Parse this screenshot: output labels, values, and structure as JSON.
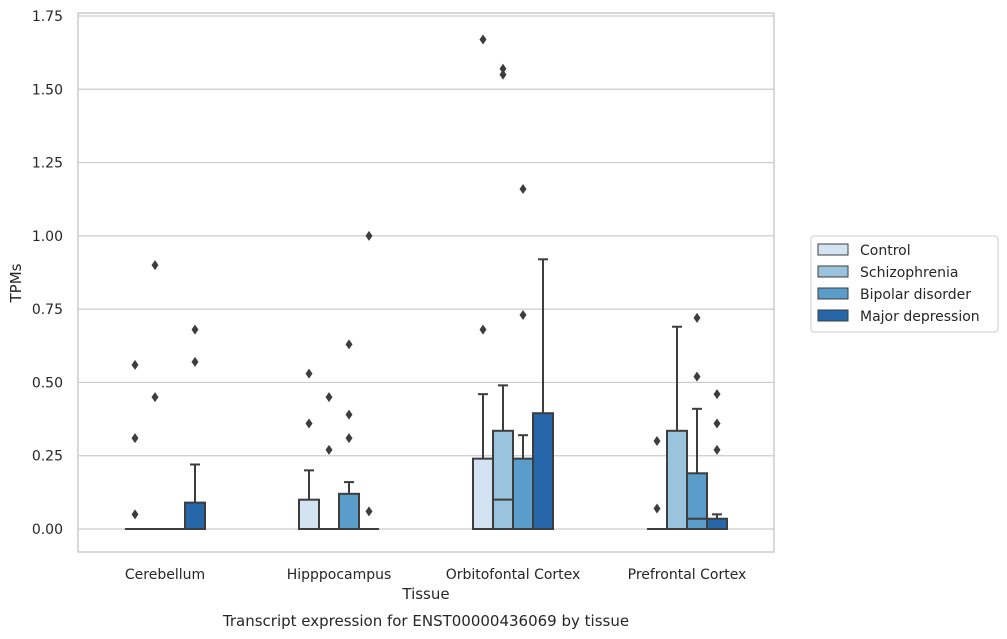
{
  "chart_data": {
    "type": "box",
    "title": "",
    "xlabel": "Tissue",
    "ylabel": "TPMs",
    "caption": "Transcript expression for ENST00000436069 by tissue",
    "categories": [
      "Cerebellum",
      "Hipppocampus",
      "Orbitofontal Cortex",
      "Prefrontal Cortex"
    ],
    "ylim": [
      -0.08,
      1.76
    ],
    "yticks": [
      0.0,
      0.25,
      0.5,
      0.75,
      1.0,
      1.25,
      1.5,
      1.75
    ],
    "ytick_labels": [
      "0.00",
      "0.25",
      "0.50",
      "0.75",
      "1.00",
      "1.25",
      "1.50",
      "1.75"
    ],
    "grid": true,
    "legend_position": "right",
    "series": [
      {
        "name": "Control",
        "color": "#d3e3f2",
        "boxes": [
          {
            "q1": 0,
            "median": 0,
            "q3": 0,
            "whislo": 0,
            "whishi": 0,
            "fliers": [
              0.56,
              0.31,
              0.05
            ]
          },
          {
            "q1": 0,
            "median": 0,
            "q3": 0.1,
            "whislo": 0,
            "whishi": 0.2,
            "fliers": [
              0.53,
              0.36
            ]
          },
          {
            "q1": 0,
            "median": 0,
            "q3": 0.24,
            "whislo": 0,
            "whishi": 0.46,
            "fliers": [
              1.67,
              0.68
            ]
          },
          {
            "q1": 0,
            "median": 0,
            "q3": 0,
            "whislo": 0,
            "whishi": 0,
            "fliers": [
              0.3,
              0.07
            ]
          }
        ]
      },
      {
        "name": "Schizophrenia",
        "color": "#9ac4de",
        "boxes": [
          {
            "q1": 0,
            "median": 0,
            "q3": 0,
            "whislo": 0,
            "whishi": 0,
            "fliers": [
              0.9,
              0.45
            ]
          },
          {
            "q1": 0,
            "median": 0,
            "q3": 0,
            "whislo": 0,
            "whishi": 0,
            "fliers": [
              0.45,
              0.27
            ]
          },
          {
            "q1": 0,
            "median": 0.1,
            "q3": 0.335,
            "whislo": 0,
            "whishi": 0.49,
            "fliers": [
              1.57,
              1.55
            ]
          },
          {
            "q1": 0,
            "median": 0,
            "q3": 0.335,
            "whislo": 0,
            "whishi": 0.69,
            "fliers": []
          }
        ]
      },
      {
        "name": "Bipolar disorder",
        "color": "#5a9cca",
        "boxes": [
          {
            "q1": 0,
            "median": 0,
            "q3": 0,
            "whislo": 0,
            "whishi": 0,
            "fliers": []
          },
          {
            "q1": 0,
            "median": 0,
            "q3": 0.12,
            "whislo": 0,
            "whishi": 0.16,
            "fliers": [
              0.63,
              0.39,
              0.31
            ]
          },
          {
            "q1": 0,
            "median": 0,
            "q3": 0.24,
            "whislo": 0,
            "whishi": 0.32,
            "fliers": [
              1.16,
              0.73
            ]
          },
          {
            "q1": 0,
            "median": 0.035,
            "q3": 0.19,
            "whislo": 0,
            "whishi": 0.41,
            "fliers": [
              0.72,
              0.52
            ]
          }
        ]
      },
      {
        "name": "Major depression",
        "color": "#2567a8",
        "boxes": [
          {
            "q1": 0,
            "median": 0,
            "q3": 0.09,
            "whislo": 0,
            "whishi": 0.22,
            "fliers": [
              0.68,
              0.57
            ]
          },
          {
            "q1": 0,
            "median": 0,
            "q3": 0,
            "whislo": 0,
            "whishi": 0,
            "fliers": [
              1.0,
              0.06
            ]
          },
          {
            "q1": 0,
            "median": 0,
            "q3": 0.395,
            "whislo": 0,
            "whishi": 0.92,
            "fliers": []
          },
          {
            "q1": 0,
            "median": 0,
            "q3": 0.035,
            "whislo": 0,
            "whishi": 0.05,
            "fliers": [
              0.46,
              0.36,
              0.27
            ]
          }
        ]
      }
    ]
  }
}
